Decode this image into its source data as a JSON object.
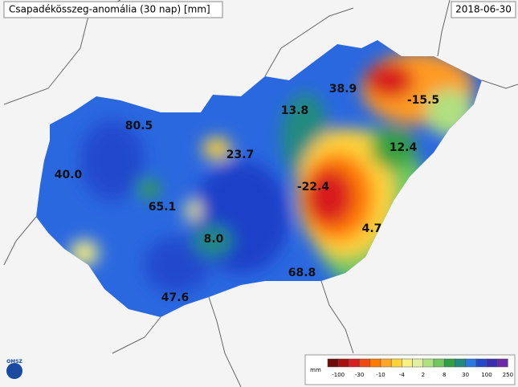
{
  "header": {
    "title": "Csapadékösszeg-anomália (30 nap) [mm]",
    "date": "2018-06-30"
  },
  "map_labels": [
    "38.9",
    "-15.5",
    "13.8",
    "80.5",
    "12.4",
    "23.7",
    "40.0",
    "-22.4",
    "65.1",
    "4.7",
    "8.0",
    "68.8",
    "47.6"
  ],
  "legend": {
    "unit": "mm",
    "ticks": [
      "-100",
      "-30",
      "-10",
      "-4",
      "2",
      "8",
      "30",
      "100",
      "250"
    ],
    "colors": [
      "#6e0a0a",
      "#a81010",
      "#d81e1e",
      "#f04a10",
      "#ff7a00",
      "#ffa424",
      "#ffd23a",
      "#f8f080",
      "#e0f0a0",
      "#b0e080",
      "#70c860",
      "#30a040",
      "#208a80",
      "#2a78e0",
      "#2448cc",
      "#3a2eb0",
      "#6a2aa8"
    ]
  },
  "logo": "OMSZ"
}
